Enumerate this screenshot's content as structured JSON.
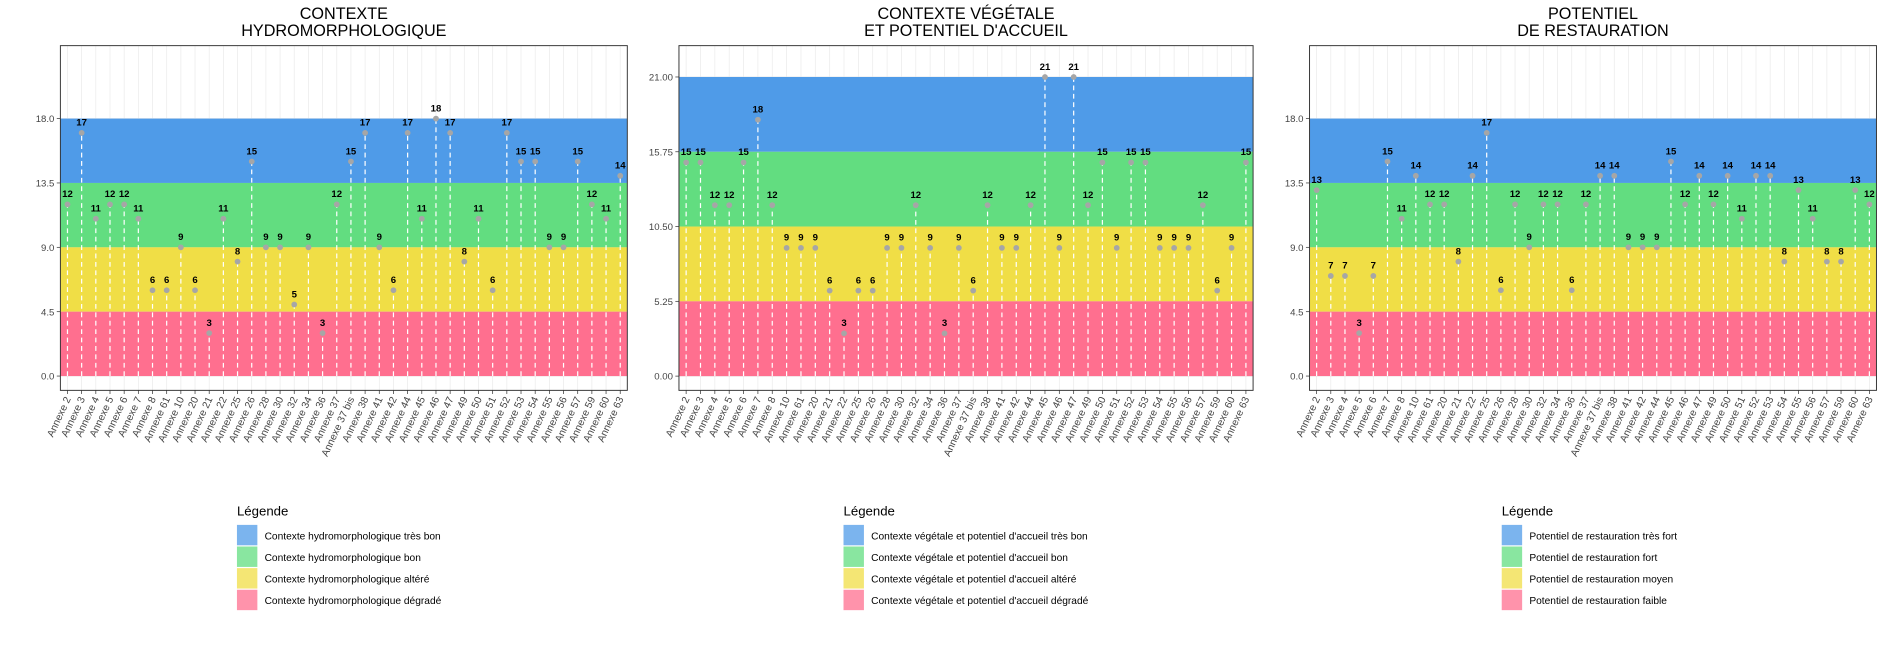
{
  "chart_data": [
    {
      "type": "lollipop",
      "title": [
        "CONTEXTE",
        "HYDROMORPHOLOGIQUE"
      ],
      "categories": [
        "Annexe 2",
        "Annexe 3",
        "Annexe 4",
        "Annexe 5",
        "Annexe 6",
        "Annexe 7",
        "Annexe 8",
        "Annexe 61",
        "Annexe 10",
        "Annexe 20",
        "Annexe 21",
        "Annexe 22",
        "Annexe 25",
        "Annexe 26",
        "Annexe 28",
        "Annexe 30",
        "Annexe 32",
        "Annexe 34",
        "Annexe 36",
        "Annexe 37",
        "Annexe 37 bis",
        "Annexe 38",
        "Annexe 41",
        "Annexe 42",
        "Annexe 44",
        "Annexe 45",
        "Annexe 46",
        "Annexe 47",
        "Annexe 49",
        "Annexe 50",
        "Annexe 51",
        "Annexe 52",
        "Annexe 53",
        "Annexe 54",
        "Annexe 55",
        "Annexe 56",
        "Annexe 57",
        "Annexe 59",
        "Annexe 60",
        "Annexe 63"
      ],
      "values": [
        12,
        17,
        11,
        12,
        12,
        11,
        6,
        6,
        9,
        6,
        3,
        11,
        8,
        15,
        9,
        9,
        5,
        9,
        3,
        12,
        15,
        17,
        9,
        6,
        17,
        11,
        18,
        17,
        8,
        11,
        6,
        17,
        15,
        15,
        9,
        9,
        15,
        12,
        11,
        14
      ],
      "ylim": [
        -1,
        23.1
      ],
      "yticks": [
        {
          "value": 0,
          "label": "0.0"
        },
        {
          "value": 4.5,
          "label": "4.5"
        },
        {
          "value": 9,
          "label": "9.0"
        },
        {
          "value": 13.5,
          "label": "13.5"
        },
        {
          "value": 18,
          "label": "18.0"
        }
      ],
      "grid": true,
      "legend_title": "Légende",
      "bands": [
        {
          "name": "Contexte hydromorphologique très bon",
          "color": "#4f9be8",
          "from": 13.5,
          "to": 18
        },
        {
          "name": "Contexte hydromorphologique bon",
          "color": "#62dd80",
          "from": 9,
          "to": 13.5
        },
        {
          "name": "Contexte hydromorphologique altéré",
          "color": "#f0de46",
          "from": 4.5,
          "to": 9
        },
        {
          "name": "Contexte hydromorphologique dégradé",
          "color": "#ff6f8f",
          "from": 0,
          "to": 4.5
        }
      ]
    },
    {
      "type": "lollipop",
      "title": [
        "CONTEXTE VÉGÉTALE",
        "ET POTENTIEL D'ACCUEIL"
      ],
      "categories": [
        "Annexe 2",
        "Annexe 3",
        "Annexe 4",
        "Annexe 5",
        "Annexe 6",
        "Annexe 7",
        "Annexe 8",
        "Annexe 10",
        "Annexe 61",
        "Annexe 20",
        "Annexe 21",
        "Annexe 22",
        "Annexe 25",
        "Annexe 26",
        "Annexe 28",
        "Annexe 30",
        "Annexe 32",
        "Annexe 34",
        "Annexe 36",
        "Annexe 37",
        "Annexe 37 bis",
        "Annexe 38",
        "Annexe 41",
        "Annexe 42",
        "Annexe 44",
        "Annexe 45",
        "Annexe 46",
        "Annexe 47",
        "Annexe 49",
        "Annexe 50",
        "Annexe 51",
        "Annexe 52",
        "Annexe 53",
        "Annexe 54",
        "Annexe 55",
        "Annexe 56",
        "Annexe 57",
        "Annexe 59",
        "Annexe 60",
        "Annexe 63"
      ],
      "values": [
        15,
        15,
        12,
        12,
        15,
        18,
        12,
        9,
        9,
        9,
        6,
        3,
        6,
        6,
        9,
        9,
        12,
        9,
        3,
        9,
        6,
        12,
        9,
        9,
        12,
        21,
        9,
        21,
        12,
        15,
        9,
        15,
        15,
        9,
        9,
        9,
        12,
        6,
        9,
        15
      ],
      "ylim": [
        -1,
        23.2
      ],
      "yticks": [
        {
          "value": 0,
          "label": "0.00"
        },
        {
          "value": 5.25,
          "label": "5.25"
        },
        {
          "value": 10.5,
          "label": "10.50"
        },
        {
          "value": 15.75,
          "label": "15.75"
        },
        {
          "value": 21,
          "label": "21.00"
        }
      ],
      "grid": true,
      "legend_title": "Légende",
      "bands": [
        {
          "name": "Contexte végétale et potentiel d'accueil très bon",
          "color": "#4f9be8",
          "from": 15.75,
          "to": 21
        },
        {
          "name": "Contexte végétale et potentiel d'accueil bon",
          "color": "#62dd80",
          "from": 10.5,
          "to": 15.75
        },
        {
          "name": "Contexte végétale et potentiel d'accueil altéré",
          "color": "#f0de46",
          "from": 5.25,
          "to": 10.5
        },
        {
          "name": "Contexte végétale et potentiel d'accueil dégradé",
          "color": "#ff6f8f",
          "from": 0,
          "to": 5.25
        }
      ]
    },
    {
      "type": "lollipop",
      "title": [
        "POTENTIEL",
        "DE RESTAURATION"
      ],
      "categories": [
        "Annexe 2",
        "Annexe 3",
        "Annexe 4",
        "Annexe 5",
        "Annexe 6",
        "Annexe 7",
        "Annexe 8",
        "Annexe 10",
        "Annexe 61",
        "Annexe 20",
        "Annexe 21",
        "Annexe 22",
        "Annexe 25",
        "Annexe 26",
        "Annexe 28",
        "Annexe 30",
        "Annexe 32",
        "Annexe 34",
        "Annexe 36",
        "Annexe 37",
        "Annexe 37 bis",
        "Annexe 38",
        "Annexe 41",
        "Annexe 42",
        "Annexe 44",
        "Annexe 45",
        "Annexe 46",
        "Annexe 47",
        "Annexe 49",
        "Annexe 50",
        "Annexe 51",
        "Annexe 52",
        "Annexe 53",
        "Annexe 54",
        "Annexe 55",
        "Annexe 56",
        "Annexe 57",
        "Annexe 59",
        "Annexe 60",
        "Annexe 63"
      ],
      "values": [
        13,
        7,
        7,
        3,
        7,
        15,
        11,
        14,
        12,
        12,
        8,
        14,
        17,
        6,
        12,
        9,
        12,
        12,
        6,
        12,
        14,
        14,
        9,
        9,
        9,
        15,
        12,
        14,
        12,
        14,
        11,
        14,
        14,
        8,
        13,
        11,
        8,
        8,
        13,
        12
      ],
      "ylim": [
        -1,
        23.1
      ],
      "yticks": [
        {
          "value": 0,
          "label": "0.0"
        },
        {
          "value": 4.5,
          "label": "4.5"
        },
        {
          "value": 9,
          "label": "9.0"
        },
        {
          "value": 13.5,
          "label": "13.5"
        },
        {
          "value": 18,
          "label": "18.0"
        }
      ],
      "grid": true,
      "legend_title": "Légende",
      "bands": [
        {
          "name": "Potentiel de restauration très fort",
          "color": "#4f9be8",
          "from": 13.5,
          "to": 18
        },
        {
          "name": "Potentiel de restauration fort",
          "color": "#62dd80",
          "from": 9,
          "to": 13.5
        },
        {
          "name": "Potentiel de restauration moyen",
          "color": "#f0de46",
          "from": 4.5,
          "to": 9
        },
        {
          "name": "Potentiel de restauration faible",
          "color": "#ff6f8f",
          "from": 0,
          "to": 4.5
        }
      ]
    }
  ]
}
